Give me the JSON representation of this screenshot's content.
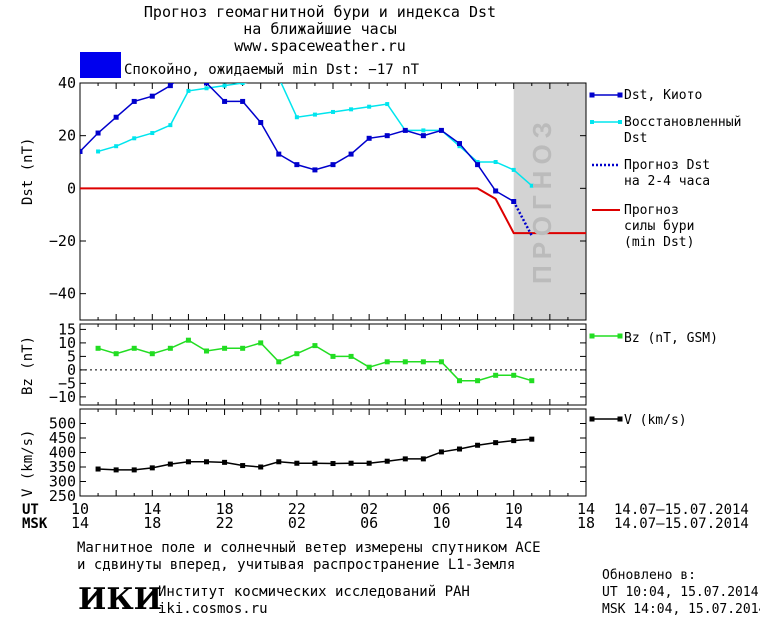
{
  "header": {
    "title_line1": "Прогноз геомагнитной бури и индекса Dst",
    "title_line2": "на ближайшие часы",
    "url": "www.spaceweather.ru",
    "status_color": "#0000ee",
    "status_text": "Спокойно, ожидаемый min Dst: −17 nT"
  },
  "legend": {
    "dst_kyoto": "Dst, Киото",
    "dst_restored_1": "Восстановленный",
    "dst_restored_2": "Dst",
    "forecast_dst_1": "Прогноз Dst",
    "forecast_dst_2": "на 2-4 часа",
    "storm_1": "Прогноз",
    "storm_2": "силы бури",
    "storm_3": "(min Dst)",
    "bz": "Bz (nT, GSM)",
    "v": "V (km/s)"
  },
  "forecast_label": "ПРОГНОЗ",
  "time_axis": {
    "ut_label": "UT",
    "msk_label": "MSK",
    "ut_ticks": [
      "10",
      "14",
      "18",
      "22",
      "02",
      "06",
      "10",
      "14"
    ],
    "msk_ticks": [
      "14",
      "18",
      "22",
      "02",
      "06",
      "10",
      "14",
      "18"
    ],
    "range_ut": "14.07–15.07.2014",
    "range_msk": "14.07–15.07.2014"
  },
  "footer": {
    "note_line1": "Магнитное поле и солнечный ветер измерены спутником ACE",
    "note_line2": "и сдвинуты вперед, учитывая распространение L1-Земля",
    "logo": "ИКИ",
    "inst_name": "Институт космических исследований РАН",
    "inst_url": "iki.cosmos.ru",
    "updated_label": "Обновлено в:",
    "updated_ut": "UT  10:04, 15.07.2014",
    "updated_msk": "MSK 14:04, 15.07.2014"
  },
  "colors": {
    "dst_kyoto": "#0000cc",
    "dst_restored": "#00e5ee",
    "forecast_dst": "#0000cc",
    "storm": "#dd0000",
    "bz": "#22dd22",
    "v": "#000000",
    "forecast_band": "#d3d3d3"
  },
  "chart_data": [
    {
      "type": "line",
      "panel": "dst",
      "ylabel": "Dst (nT)",
      "xlim_hours": [
        0,
        28
      ],
      "ylim": [
        -50,
        40
      ],
      "yticks": [
        -40,
        -20,
        0,
        20,
        40
      ],
      "forecast_band_hours": [
        24,
        28
      ],
      "series": [
        {
          "name": "Dst, Киото",
          "x": [
            0,
            1,
            2,
            3,
            4,
            5,
            6,
            7,
            8,
            9,
            10,
            11,
            12,
            13,
            14,
            15,
            16,
            17,
            18,
            19,
            20,
            21,
            22,
            23,
            24
          ],
          "y": [
            14,
            21,
            27,
            33,
            35,
            39,
            45,
            40,
            33,
            33,
            25,
            13,
            9,
            7,
            9,
            13,
            19,
            20,
            22,
            20,
            22,
            17,
            9,
            -1,
            -5
          ]
        },
        {
          "name": "Восстановленный Dst",
          "x": [
            1,
            2,
            3,
            4,
            5,
            6,
            7,
            8,
            9,
            10,
            11,
            12,
            13,
            14,
            15,
            16,
            17,
            18,
            19,
            20,
            21,
            22,
            23,
            24,
            25
          ],
          "y": [
            14,
            16,
            19,
            21,
            24,
            37,
            38,
            39,
            40,
            41,
            42,
            27,
            28,
            29,
            30,
            31,
            32,
            22,
            22,
            22,
            16,
            10,
            10,
            7,
            1
          ]
        },
        {
          "name": "Прогноз Dst на 2-4 часа",
          "x": [
            24,
            25
          ],
          "y": [
            -5,
            -18
          ]
        },
        {
          "name": "Прогноз силы бури (min Dst)",
          "x": [
            0,
            22,
            23,
            24,
            28
          ],
          "y": [
            0,
            0,
            -4,
            -17,
            -17
          ]
        }
      ]
    },
    {
      "type": "line",
      "panel": "bz",
      "ylabel": "Bz (nT)",
      "ylim": [
        -13,
        17
      ],
      "yticks": [
        -10,
        -5,
        0,
        5,
        10,
        15
      ],
      "series": [
        {
          "name": "Bz (nT, GSM)",
          "x": [
            1,
            2,
            3,
            4,
            5,
            6,
            7,
            8,
            9,
            10,
            11,
            12,
            13,
            14,
            15,
            16,
            17,
            18,
            19,
            20,
            21,
            22,
            23,
            24,
            25
          ],
          "y": [
            8,
            6,
            8,
            6,
            8,
            11,
            7,
            8,
            8,
            10,
            3,
            6,
            9,
            5,
            5,
            1,
            3,
            3,
            3,
            3,
            -4,
            -4,
            -2,
            -2,
            -4
          ]
        }
      ]
    },
    {
      "type": "line",
      "panel": "v",
      "ylabel": "V (km/s)",
      "ylim": [
        250,
        550
      ],
      "yticks": [
        250,
        300,
        350,
        400,
        450,
        500
      ],
      "series": [
        {
          "name": "V (km/s)",
          "x": [
            1,
            2,
            3,
            4,
            5,
            6,
            7,
            8,
            9,
            10,
            11,
            12,
            13,
            14,
            15,
            16,
            17,
            18,
            19,
            20,
            21,
            22,
            23,
            24,
            25
          ],
          "y": [
            343,
            340,
            340,
            347,
            360,
            368,
            368,
            366,
            355,
            350,
            368,
            363,
            363,
            362,
            363,
            363,
            370,
            378,
            378,
            402,
            412,
            425,
            434,
            441,
            446
          ]
        }
      ]
    }
  ]
}
